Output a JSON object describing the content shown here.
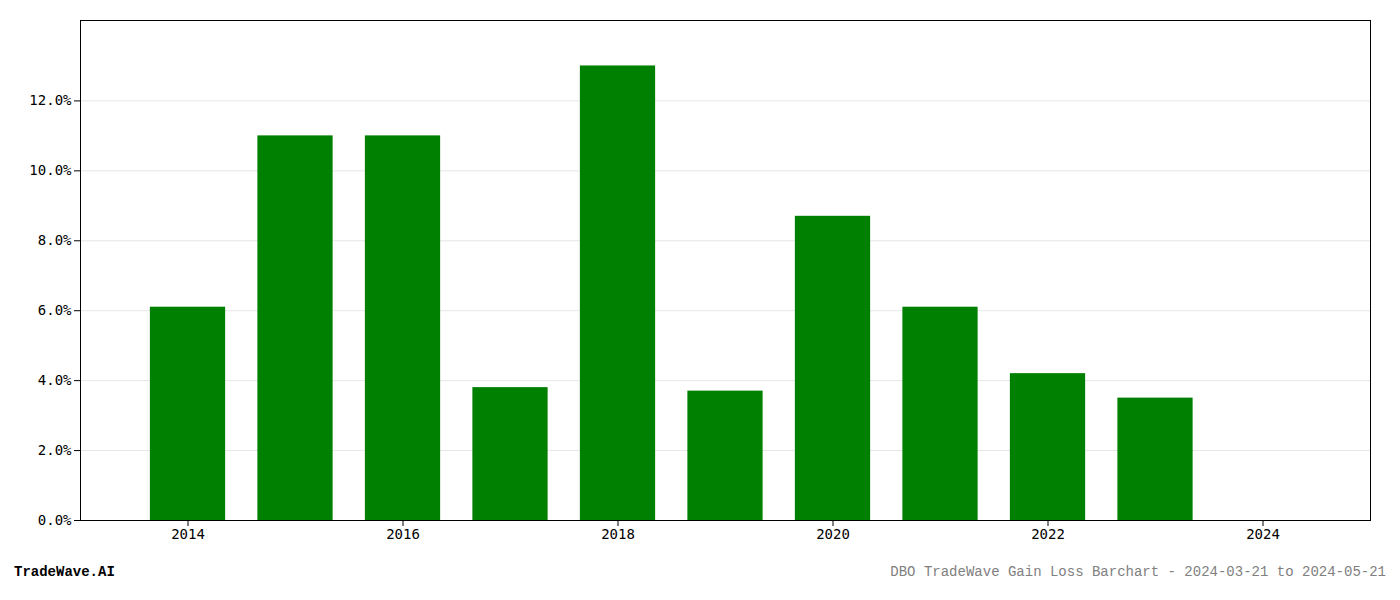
{
  "chart_data": {
    "type": "bar",
    "x": [
      2014,
      2015,
      2016,
      2017,
      2018,
      2019,
      2020,
      2021,
      2022,
      2023
    ],
    "values": [
      0.061,
      0.11,
      0.11,
      0.038,
      0.13,
      0.037,
      0.087,
      0.061,
      0.042,
      0.035
    ],
    "color": "#008000",
    "xlim": [
      2013.0,
      2025.0
    ],
    "xticks": [
      2014,
      2016,
      2018,
      2020,
      2022,
      2024
    ],
    "ylim": [
      0,
      0.143
    ],
    "yticks": [
      {
        "value": 0.0,
        "label": "0.0%"
      },
      {
        "value": 0.02,
        "label": "2.0%"
      },
      {
        "value": 0.04,
        "label": "4.0%"
      },
      {
        "value": 0.06,
        "label": "6.0%"
      },
      {
        "value": 0.08,
        "label": "8.0%"
      },
      {
        "value": 0.1,
        "label": "10.0%"
      },
      {
        "value": 0.12,
        "label": "12.0%"
      }
    ],
    "grid": true,
    "annotations": [
      "TradeWave.AI",
      "DBO TradeWave Gain Loss Barchart - 2024-03-21 to 2024-05-21"
    ]
  }
}
